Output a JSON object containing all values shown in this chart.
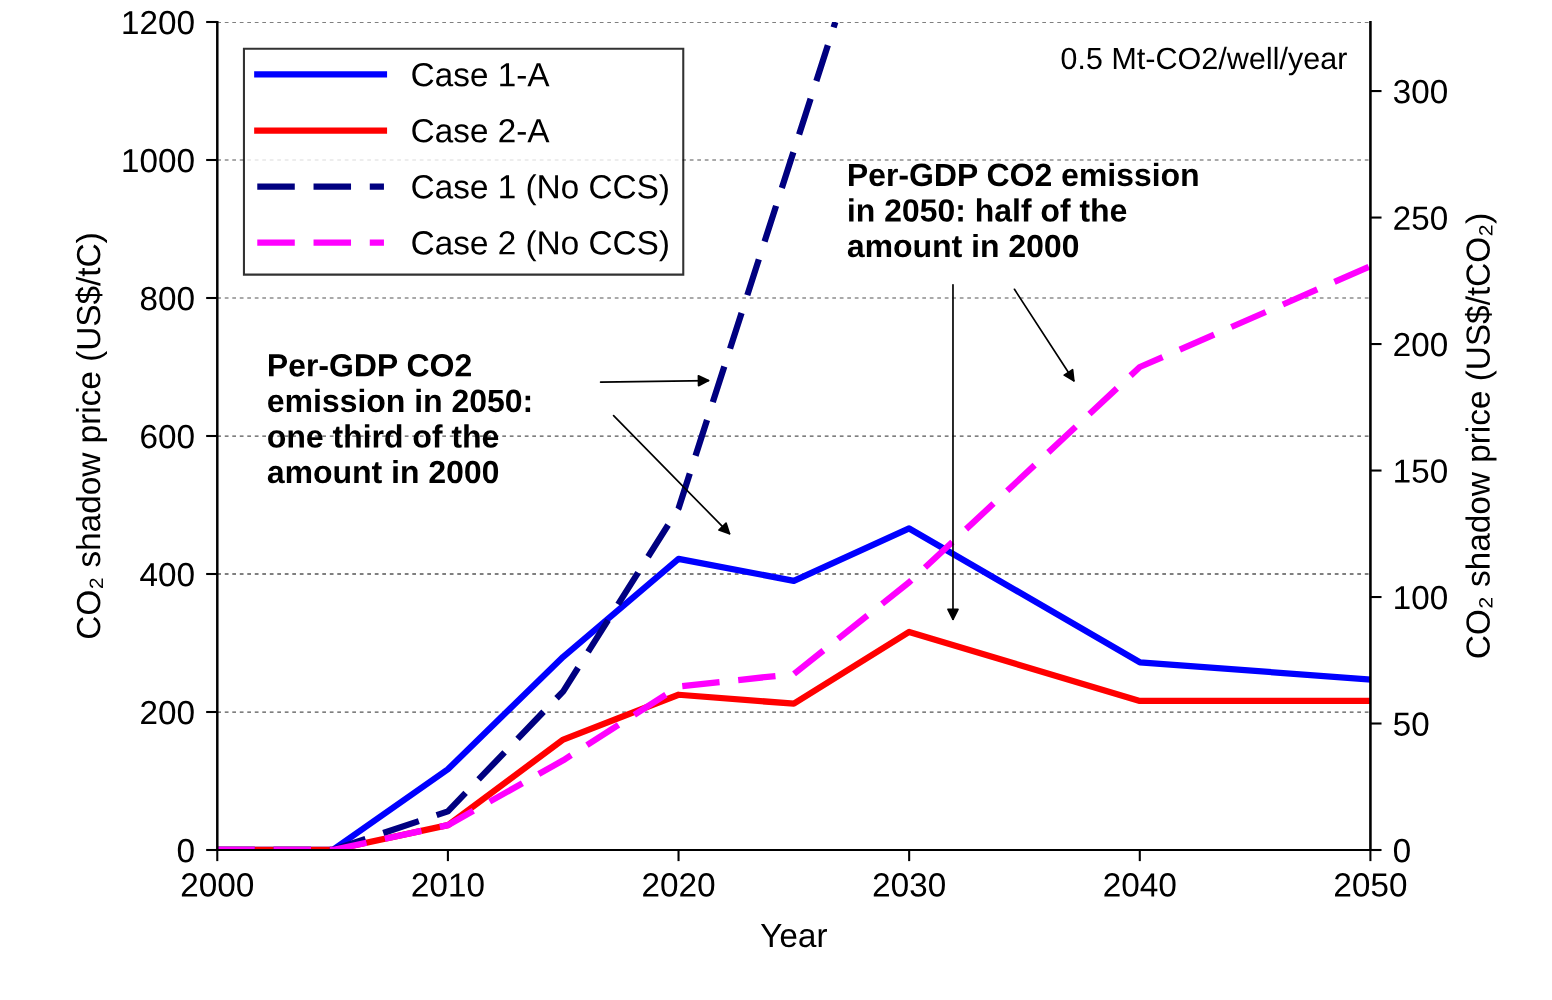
{
  "chart_data": {
    "type": "line",
    "xlabel": "Year",
    "ylabel": "CO₂ shadow price (US$/tC)",
    "y2label": "CO₂ shadow price (US$/tCO₂)",
    "x": [
      2000,
      2005,
      2010,
      2015,
      2020,
      2025,
      2030,
      2040,
      2050
    ],
    "series": [
      {
        "name": "Case 1-A",
        "color": "#0000ff",
        "line_style": "solid",
        "values": [
          0,
          0,
          117,
          280,
          422,
          390,
          466,
          272,
          247
        ]
      },
      {
        "name": "Case 2-A",
        "color": "#ff0000",
        "line_style": "solid",
        "values": [
          0,
          0,
          36,
          160,
          225,
          212,
          316,
          216,
          216
        ]
      },
      {
        "name": "Case 1 (No CCS)",
        "color": "#000080",
        "line_style": "dashed",
        "x": [
          2000,
          2005,
          2010,
          2015,
          2020,
          2026.8
        ],
        "values": [
          0,
          0,
          56,
          230,
          495,
          1200
        ]
      },
      {
        "name": "Case 2 (No CCS)",
        "color": "#ff00ff",
        "line_style": "dashed",
        "values": [
          0,
          0,
          36,
          130,
          237,
          255,
          388,
          700,
          846
        ]
      }
    ],
    "xlim": [
      2000,
      2050
    ],
    "xticks": [
      2000,
      2010,
      2020,
      2030,
      2040,
      2050
    ],
    "ylim": [
      0,
      1200
    ],
    "yticks": [
      0,
      200,
      400,
      600,
      800,
      1000,
      1200
    ],
    "y2lim": [
      0,
      327.3
    ],
    "y2ticks": [
      0,
      50,
      100,
      150,
      200,
      250,
      300
    ],
    "grid": "y",
    "legend": "top left",
    "marker": "none",
    "annotations": [
      {
        "text": "0.5 Mt-CO2/well/year"
      },
      "Per-GDP CO2\nemission in 2050:\none third of the\namount in 2000",
      "Per-GDP CO2 emission\nin 2050: half of the\namount in 2000"
    ]
  }
}
